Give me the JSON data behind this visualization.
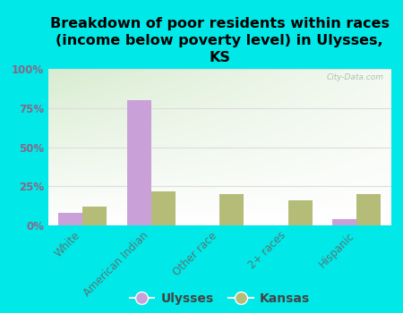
{
  "title": "Breakdown of poor residents within races\n(income below poverty level) in Ulysses,\nKS",
  "categories": [
    "White",
    "American Indian",
    "Other race",
    "2+ races",
    "Hispanic"
  ],
  "ulysses_values": [
    8,
    80,
    0,
    0,
    4
  ],
  "kansas_values": [
    12,
    22,
    20,
    16,
    20
  ],
  "ulysses_color": "#c9a0d8",
  "kansas_color": "#b5bc78",
  "background_color": "#00e8e8",
  "ylabel_ticks": [
    "0%",
    "25%",
    "50%",
    "75%",
    "100%"
  ],
  "ylim": [
    0,
    100
  ],
  "bar_width": 0.35,
  "watermark": "City-Data.com",
  "title_fontsize": 11.5,
  "tick_fontsize": 8.5,
  "legend_fontsize": 10,
  "ytick_color": "#886688",
  "xtick_color": "#557777",
  "grid_color": "#dddddd"
}
